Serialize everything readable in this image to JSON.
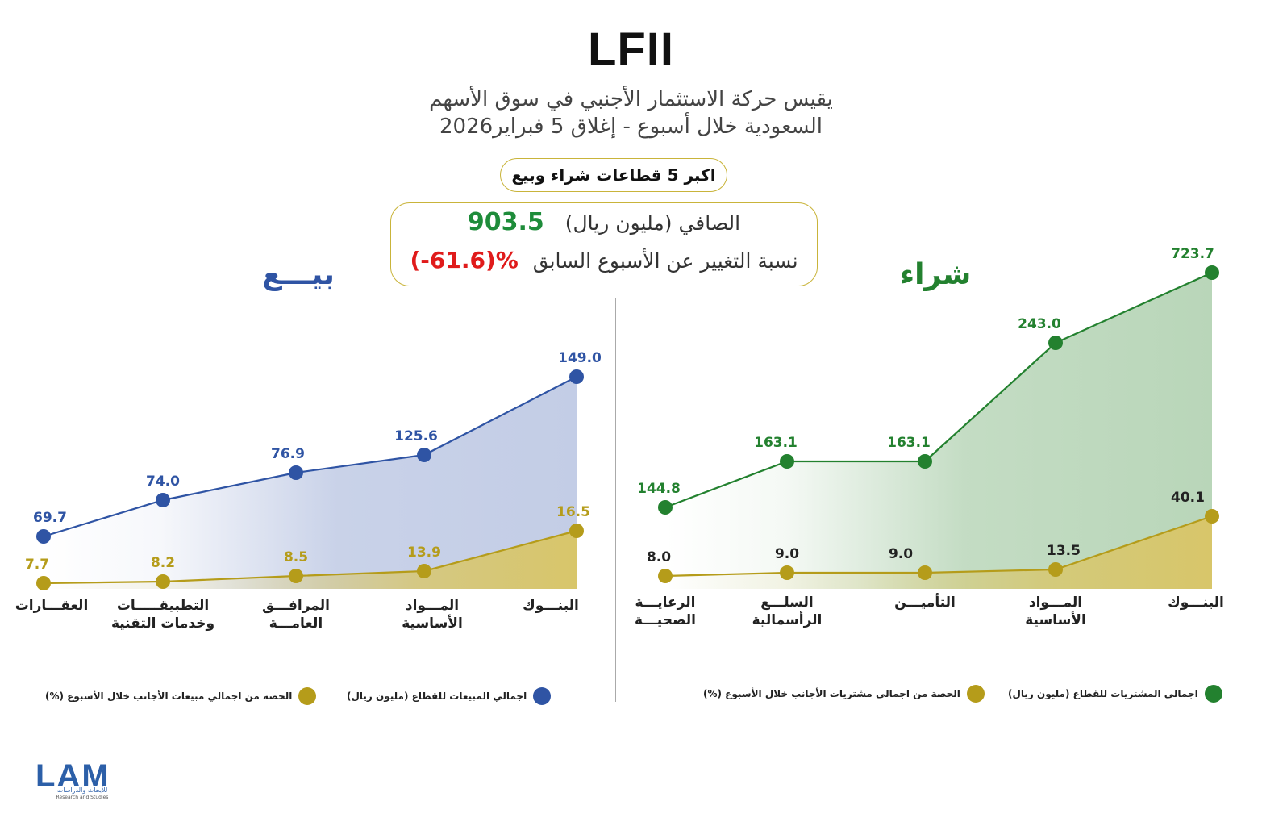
{
  "header": {
    "title": "LFII",
    "subtitle_line1": "يقيس حركة الاستثمار الأجنبي في سوق الأسهم",
    "subtitle_line2": "السعودية خلال أسبوع - إغلاق 5 فبراير2026",
    "top_sectors_label": "اكبر 5 قطاعات شراء وبيع"
  },
  "net_box": {
    "net_label": "الصافي (مليون ريال)",
    "net_value": "903.5",
    "change_label": "نسبة التغيير عن الأسبوع السابق",
    "change_value": "(-61.6)%"
  },
  "colors": {
    "buy_line": "#23812f",
    "buy_area": "#b9d6b9",
    "sell_line": "#2f54a4",
    "sell_area": "#c3cde6",
    "share_line": "#b59c1a",
    "share_area": "#d8c66a",
    "negative": "#e01b1b",
    "positive": "#1e8c3a"
  },
  "chart_data": [
    {
      "type": "area",
      "side_title": "شراء",
      "categories": [
        "الرعايـــة الصحيـــة",
        "السلـــع الرأسمالية",
        "التأميـــن",
        "المـــواد الأساسية",
        "البنـــوك"
      ],
      "series": [
        {
          "name": "اجمالي المشتريات للقطاع (مليون ريال)",
          "values": [
            144.8,
            163.1,
            163.1,
            243.0,
            723.7
          ],
          "labels": [
            "144.8",
            "163.1",
            "163.1",
            "243.0",
            "723.7"
          ]
        },
        {
          "name": "الحصة من اجمالي مشتريات الأجانب خلال الأسبوع (%)",
          "values": [
            8.0,
            9.0,
            9.0,
            13.5,
            40.1
          ],
          "labels": [
            "8.0",
            "9.0",
            "9.0",
            "13.5",
            "40.1"
          ]
        }
      ]
    },
    {
      "type": "area",
      "side_title": "بيـــع",
      "categories": [
        "العقـــارات",
        "التطبيقـــــات وخدمات التقنية",
        "المرافـــق العامـــة",
        "المـــواد الأساسية",
        "البنـــوك"
      ],
      "series": [
        {
          "name": "اجمالي المبيعات للقطاع (مليون ريال)",
          "values": [
            69.7,
            74.0,
            76.9,
            125.6,
            149.0
          ],
          "labels": [
            "69.7",
            "74.0",
            "76.9",
            "125.6",
            "149.0"
          ]
        },
        {
          "name": "الحصة من اجمالي مبيعات الأجانب خلال الأسبوع (%)",
          "values": [
            7.7,
            8.2,
            8.5,
            13.9,
            16.5
          ],
          "labels": [
            "7.7",
            "8.2",
            "8.5",
            "13.9",
            "16.5"
          ]
        }
      ]
    }
  ],
  "logo": {
    "mark": "LAM",
    "sub_ar": "للأبحاث والدراسات",
    "sub_en": "Research and Studies"
  }
}
